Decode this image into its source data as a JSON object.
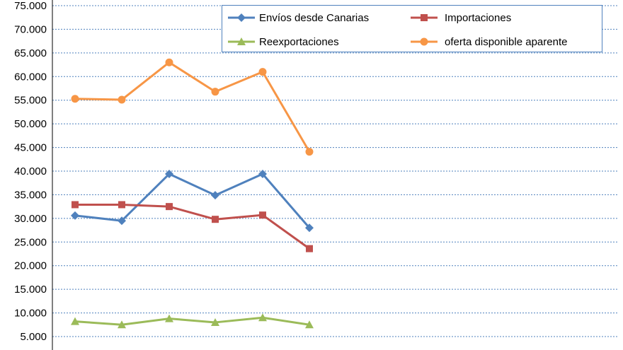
{
  "chart_data": {
    "type": "line",
    "title": "",
    "xlabel": "",
    "ylabel": "",
    "x": [
      1,
      2,
      3,
      4,
      5,
      6
    ],
    "ylim": [
      5000,
      75000
    ],
    "y_ticks": [
      "5.000",
      "10.000",
      "15.000",
      "20.000",
      "25.000",
      "30.000",
      "35.000",
      "40.000",
      "45.000",
      "50.000",
      "55.000",
      "60.000",
      "65.000",
      "70.000",
      "75.000"
    ],
    "grid": true,
    "legend_position": "top-right",
    "series": [
      {
        "name": "Envíos desde Canarias",
        "color": "#4F81BD",
        "marker": "diamond",
        "values": [
          30600,
          29500,
          39400,
          34900,
          39400,
          28000
        ]
      },
      {
        "name": "Importaciones",
        "color": "#C0504D",
        "marker": "square",
        "values": [
          32900,
          32900,
          32500,
          29800,
          30700,
          23600
        ]
      },
      {
        "name": "Reexportaciones",
        "color": "#9BBB59",
        "marker": "triangle",
        "values": [
          8200,
          7500,
          8800,
          8000,
          9000,
          7500
        ]
      },
      {
        "name": "oferta disponible aparente",
        "color": "#F79646",
        "marker": "circle",
        "values": [
          55300,
          55100,
          63000,
          56800,
          61000,
          44100
        ]
      }
    ]
  }
}
